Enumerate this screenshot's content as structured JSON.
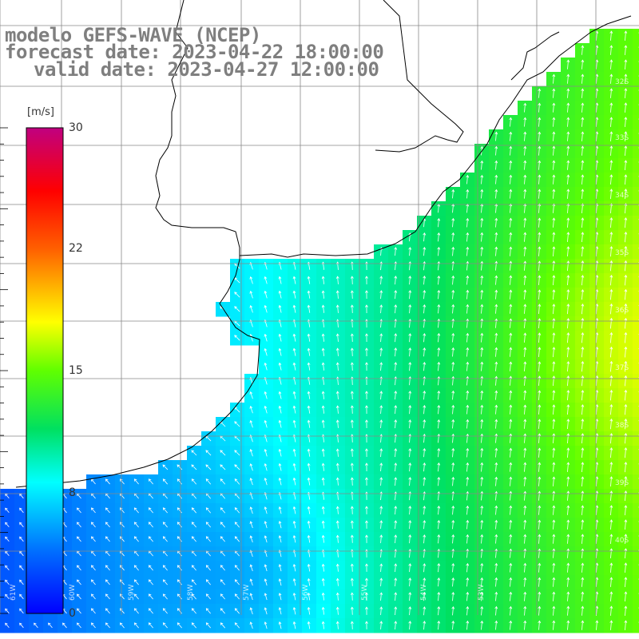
{
  "title": {
    "line1": "modelo GEFS-WAVE (NCEP)",
    "line2": "forecast date: 2023-04-22 18:00:00",
    "line3": "valid date: 2023-04-27 12:00:00"
  },
  "colorbar": {
    "unit": "[m/s]",
    "ticks": [
      {
        "label": "30",
        "value": 30
      },
      {
        "label": "22",
        "value": 22
      },
      {
        "label": "15",
        "value": 15
      },
      {
        "label": "8",
        "value": 8
      },
      {
        "label": "0",
        "value": 0
      }
    ],
    "colors": [
      "#0000ff",
      "#0080ff",
      "#00e0ff",
      "#00ff40",
      "#60ff00",
      "#ffff00",
      "#ff8000",
      "#ff0000",
      "#ff0040",
      "#c00080"
    ]
  },
  "lat_labels": [
    "32S",
    "33S",
    "34S",
    "35S",
    "36S",
    "37S",
    "38S",
    "39S",
    "40S"
  ],
  "lon_labels": [
    "61W",
    "60W",
    "59W",
    "58W",
    "57W",
    "56W",
    "55W",
    "54W",
    "53W"
  ],
  "field_colors": {
    "land": "#ffffff",
    "coast": "#000000",
    "grid": "#888888",
    "arrow": "#ffffff"
  }
}
